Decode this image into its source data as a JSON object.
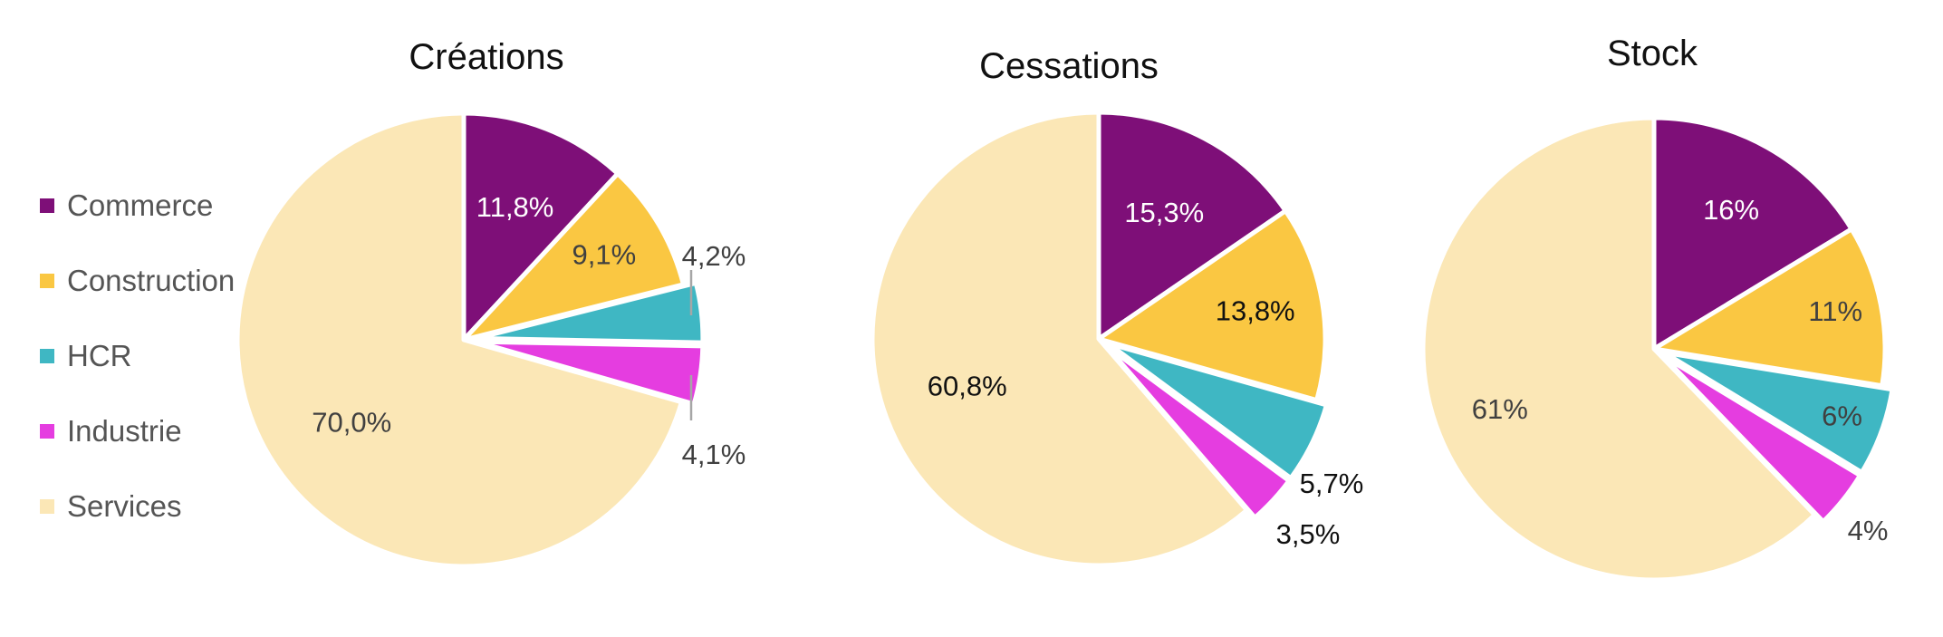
{
  "chart_data": {
    "type": "pie",
    "categories": [
      "Commerce",
      "Construction",
      "HCR",
      "Industrie",
      "Services"
    ],
    "colors": {
      "Commerce": "#7e0f78",
      "Construction": "#fac742",
      "HCR": "#3fb7c3",
      "Industrie": "#e53de0",
      "Services": "#fbe7b6"
    },
    "legend": {
      "position": "left",
      "items": [
        "Commerce",
        "Construction",
        "HCR",
        "Industrie",
        "Services"
      ]
    },
    "charts": [
      {
        "title": "Créations",
        "values": [
          11.8,
          9.1,
          4.2,
          4.1,
          70.0
        ],
        "labels": [
          "11,8%",
          "9,1%",
          "4,2%",
          "4,1%",
          "70,0%"
        ]
      },
      {
        "title": "Cessations",
        "values": [
          15.3,
          13.8,
          5.7,
          3.5,
          60.8
        ],
        "labels": [
          "15,3%",
          "13,8%",
          "5,7%",
          "3,5%",
          "60,8%"
        ]
      },
      {
        "title": "Stock",
        "values": [
          16,
          11,
          6,
          4,
          61
        ],
        "labels": [
          "16%",
          "11%",
          "6%",
          "4%",
          "61%"
        ]
      }
    ]
  }
}
